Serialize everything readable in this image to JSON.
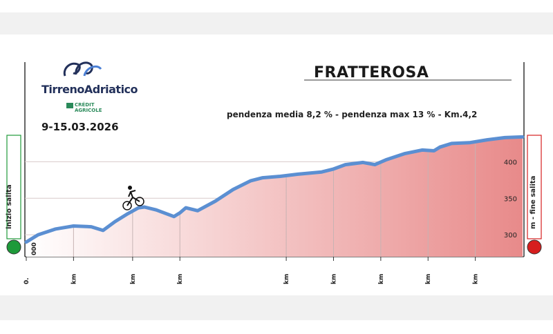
{
  "header": {
    "brand": "TirrenoAdriatico",
    "sponsor_line1": "CRÉDIT",
    "sponsor_line2": "AGRICOLE",
    "dates": "9-15.03.2026"
  },
  "left_marker": {
    "label": "inizio salita"
  },
  "right_marker": {
    "label": "m - fine salita"
  },
  "colors": {
    "line": "#5b8fd2",
    "fill_top": "#e88a8a",
    "fill_bottom": "#ffffff",
    "start_dot": "#1e9a3a",
    "end_dot": "#d61e1e"
  },
  "chart_data": {
    "type": "area",
    "title": "FRATTEROSA",
    "subtitle": "pendenza media 8,2 % - pendenza max 13 % - Km.4,2",
    "start_label": "000",
    "xlabel": "",
    "ylabel": "",
    "x_ticks": [
      {
        "km": 0,
        "label": "0."
      },
      {
        "km": 0.4,
        "label": "km"
      },
      {
        "km": 0.9,
        "label": "km"
      },
      {
        "km": 1.3,
        "label": "km"
      },
      {
        "km": 2.2,
        "label": "km"
      },
      {
        "km": 2.6,
        "label": "km"
      },
      {
        "km": 3.0,
        "label": "km"
      },
      {
        "km": 3.4,
        "label": "km"
      },
      {
        "km": 3.8,
        "label": "km"
      }
    ],
    "y_ticks": [
      300,
      350,
      400
    ],
    "ylim": [
      270,
      440
    ],
    "xlim": [
      0,
      4.2
    ],
    "x": [
      0,
      0.1,
      0.25,
      0.4,
      0.55,
      0.65,
      0.75,
      0.85,
      0.95,
      1.0,
      1.1,
      1.25,
      1.3,
      1.35,
      1.45,
      1.6,
      1.75,
      1.9,
      2.0,
      2.15,
      2.3,
      2.5,
      2.6,
      2.7,
      2.85,
      2.95,
      3.05,
      3.2,
      3.35,
      3.45,
      3.5,
      3.6,
      3.75,
      3.9,
      4.05,
      4.2
    ],
    "y": [
      290,
      300,
      308,
      312,
      311,
      306,
      318,
      328,
      337,
      338,
      334,
      325,
      330,
      337,
      333,
      346,
      362,
      374,
      378,
      380,
      383,
      386,
      390,
      396,
      399,
      396,
      403,
      411,
      416,
      415,
      420,
      425,
      426,
      430,
      433,
      434
    ]
  }
}
